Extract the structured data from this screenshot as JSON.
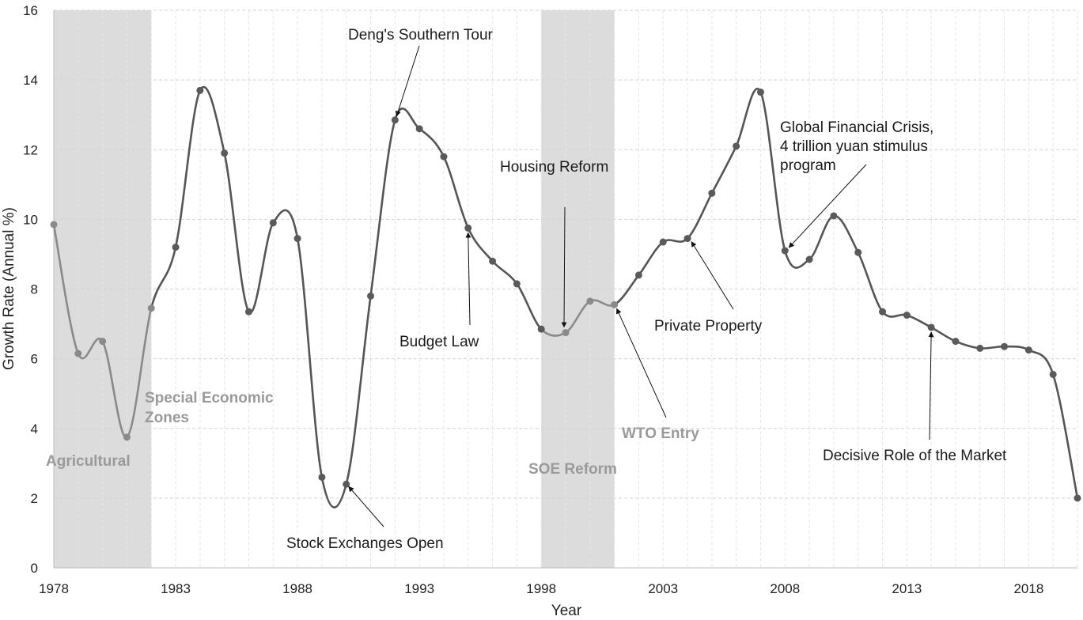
{
  "chart_data": {
    "type": "line",
    "xlabel": "Year",
    "ylabel": "Growth Rate (Annual %)",
    "ylim": [
      0,
      16
    ],
    "xlim": [
      1978,
      2020
    ],
    "x_ticks": [
      1978,
      1983,
      1988,
      1993,
      1998,
      2003,
      2008,
      2013,
      2018
    ],
    "y_ticks": [
      0,
      2,
      4,
      6,
      8,
      10,
      12,
      14,
      16
    ],
    "grid": "horizontal dashed",
    "x": [
      1978,
      1979,
      1980,
      1981,
      1982,
      1983,
      1984,
      1985,
      1986,
      1987,
      1988,
      1989,
      1990,
      1991,
      1992,
      1993,
      1994,
      1995,
      1996,
      1997,
      1998,
      1999,
      2000,
      2001,
      2002,
      2003,
      2004,
      2005,
      2006,
      2007,
      2008,
      2009,
      2010,
      2011,
      2012,
      2013,
      2014,
      2015,
      2016,
      2017,
      2018,
      2019,
      2020
    ],
    "values": [
      9.85,
      6.15,
      6.5,
      3.75,
      7.45,
      9.2,
      13.7,
      11.9,
      7.35,
      9.9,
      9.45,
      2.6,
      2.4,
      7.8,
      12.85,
      12.6,
      11.8,
      9.75,
      8.8,
      8.15,
      6.85,
      6.75,
      7.65,
      7.55,
      8.4,
      9.35,
      9.45,
      10.75,
      12.1,
      13.65,
      9.1,
      8.85,
      10.1,
      9.05,
      7.35,
      7.25,
      6.9,
      6.5,
      6.3,
      6.35,
      6.25,
      5.55,
      2.0
    ],
    "shaded_periods": [
      {
        "label": "Agricultural",
        "from": 1978,
        "to": 1982
      },
      {
        "label": "SOE Reform",
        "from": 1998,
        "to": 2001
      }
    ],
    "highlight_labels": [
      {
        "label": "Special Economic Zones",
        "year": 1982
      },
      {
        "label": "WTO Entry",
        "year": 2001
      }
    ],
    "annotations": [
      {
        "label": "Deng's Southern Tour",
        "year": 1992
      },
      {
        "label": "Stock Exchanges Open",
        "year": 1990
      },
      {
        "label": "Budget Law",
        "year": 1995
      },
      {
        "label": "Housing Reform",
        "year": 1999
      },
      {
        "label": "Private Property",
        "year": 2004
      },
      {
        "label": "Global Financial Crisis, 4 trillion yuan stimulus program",
        "year": 2008
      },
      {
        "label": "Decisive Role of the Market",
        "year": 2014
      }
    ],
    "colors": {
      "line": "#555555",
      "highlight_line": "#8a8a8a",
      "marker": "#5a5a5a",
      "highlight_marker": "#8a8a8a",
      "band": "#dcdcdc"
    }
  },
  "labels": {
    "agricultural": "Agricultural",
    "sez_line1": "Special Economic",
    "sez_line2": "Zones",
    "soe": "SOE Reform",
    "wto": "WTO Entry",
    "deng": "Deng's Southern Tour",
    "stock": "Stock Exchanges Open",
    "budget": "Budget Law",
    "housing": "Housing Reform",
    "private": "Private Property",
    "gfc_line1": "Global Financial Crisis,",
    "gfc_line2": "4 trillion yuan stimulus",
    "gfc_line3": "program",
    "market": "Decisive Role of the Market"
  }
}
